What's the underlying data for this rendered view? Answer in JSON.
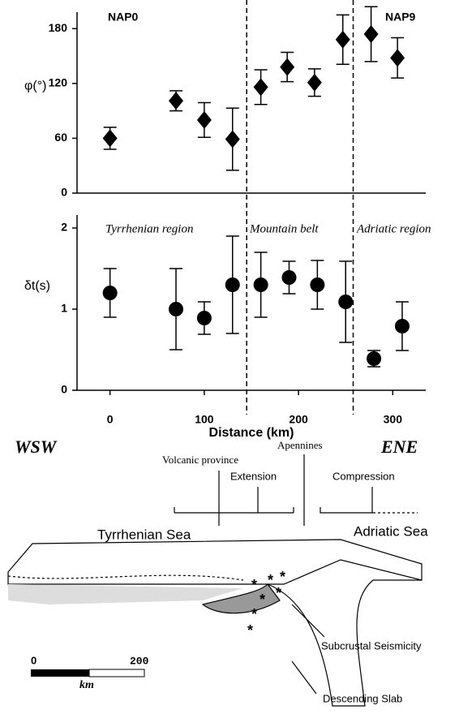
{
  "chart_data": [
    {
      "type": "scatter",
      "y_label": "φ(°)",
      "marker": "diamond",
      "color": "#000000",
      "annotations": [
        "NAP0",
        "NAP9"
      ],
      "x": [
        0,
        70,
        100,
        130,
        160,
        188,
        217,
        247,
        277,
        305
      ],
      "values": [
        60,
        101,
        80,
        59,
        116,
        138,
        121,
        168,
        174,
        148
      ],
      "errors": [
        12,
        11,
        19,
        34,
        19,
        16,
        15,
        27,
        30,
        22
      ],
      "xlim": [
        -35,
        335
      ],
      "ylim": [
        0,
        198
      ],
      "yticks": [
        0,
        60,
        120,
        180
      ],
      "dividers": [
        145,
        258
      ]
    },
    {
      "type": "scatter",
      "y_label": "δt(s)",
      "x_label": "Distance (km)",
      "marker": "circle",
      "color": "#000000",
      "annotations": [
        "Tyrrhenian region",
        "Mountain belt",
        "Adriatic region"
      ],
      "x": [
        0,
        70,
        100,
        130,
        160,
        190,
        220,
        250,
        280,
        310
      ],
      "values": [
        1.2,
        1.0,
        0.89,
        1.3,
        1.3,
        1.39,
        1.3,
        1.09,
        0.39,
        0.79
      ],
      "errors": [
        0.3,
        0.5,
        0.2,
        0.6,
        0.4,
        0.2,
        0.3,
        0.5,
        0.1,
        0.3
      ],
      "xlim": [
        -35,
        335
      ],
      "ylim": [
        0,
        2.16
      ],
      "yticks": [
        0,
        1,
        2
      ],
      "xticks": [
        0,
        100,
        200,
        300
      ],
      "dividers": [
        145,
        258
      ]
    }
  ],
  "diagram": {
    "wsw": "WSW",
    "ene": "ENE",
    "volcanic": "Volcanic province",
    "extension": "Extension",
    "apennines": "Apennines",
    "compression": "Compression",
    "tyrrhenian": "Tyrrhenian Sea",
    "adriatic": "Adriatic Sea",
    "seismicity": "Subcrustal Seismicity",
    "slab": "Descending Slab",
    "scale_start": "0",
    "scale_end": "200",
    "scale_unit": "km"
  }
}
